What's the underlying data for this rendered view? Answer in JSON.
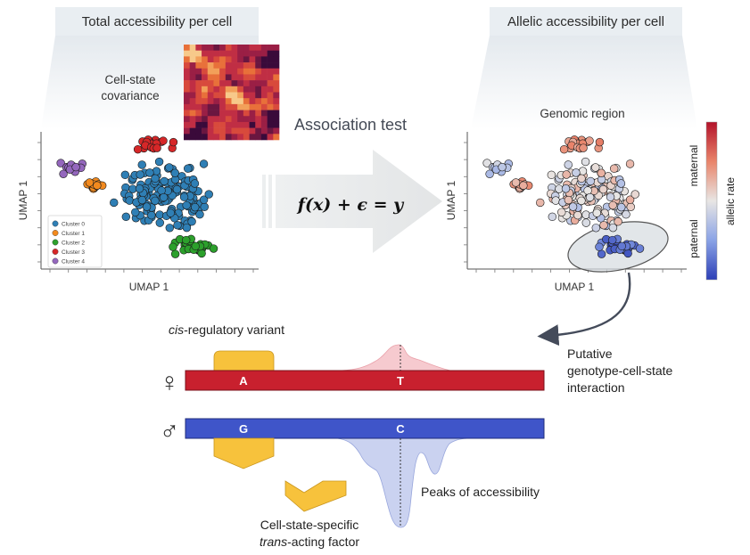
{
  "panels": {
    "left_header": "Total accessibility per cell",
    "right_header": "Allelic accessibility per cell",
    "covariance_label": [
      "Cell-state",
      "covariance"
    ],
    "genomic_region_label": "Genomic region",
    "left_ylabel": "UMAP 1",
    "left_xlabel": "UMAP 1",
    "right_ylabel": "UMAP 1",
    "right_xlabel": "UMAP 1"
  },
  "legend": {
    "items": [
      {
        "label": "Cluster 0",
        "color": "#2f7fb5"
      },
      {
        "label": "Cluster 1",
        "color": "#f28a1e"
      },
      {
        "label": "Cluster 2",
        "color": "#2ca02c"
      },
      {
        "label": "Cluster 3",
        "color": "#d62728"
      },
      {
        "label": "Cluster 4",
        "color": "#9467bd"
      }
    ]
  },
  "arrow": {
    "title": "Association test",
    "formula": "f(x) + ϵ = y"
  },
  "colorbar": {
    "top_label": "maternal",
    "bottom_label": "paternal",
    "title": "allelic rate"
  },
  "annotation": {
    "interaction": [
      "Putative",
      "genotype-cell-state",
      "interaction"
    ]
  },
  "genome": {
    "variant_prefix": "cis",
    "variant_suffix": "-regulatory variant",
    "maternal_symbol": "♀",
    "paternal_symbol": "♂",
    "maternal_allele_1": "A",
    "maternal_allele_2": "T",
    "paternal_allele_1": "G",
    "paternal_allele_2": "C",
    "peaks_label": "Peaks of accessibility",
    "factor_line1": "Cell-state-specific",
    "factor_prefix": "trans",
    "factor_suffix": "-acting factor"
  },
  "colors": {
    "maternal": "#c8202e",
    "paternal": "#3f55c9",
    "factor": "#f7c23c",
    "header_bg": "#e9eef2",
    "arrow_gray": "#e8e9ea"
  }
}
